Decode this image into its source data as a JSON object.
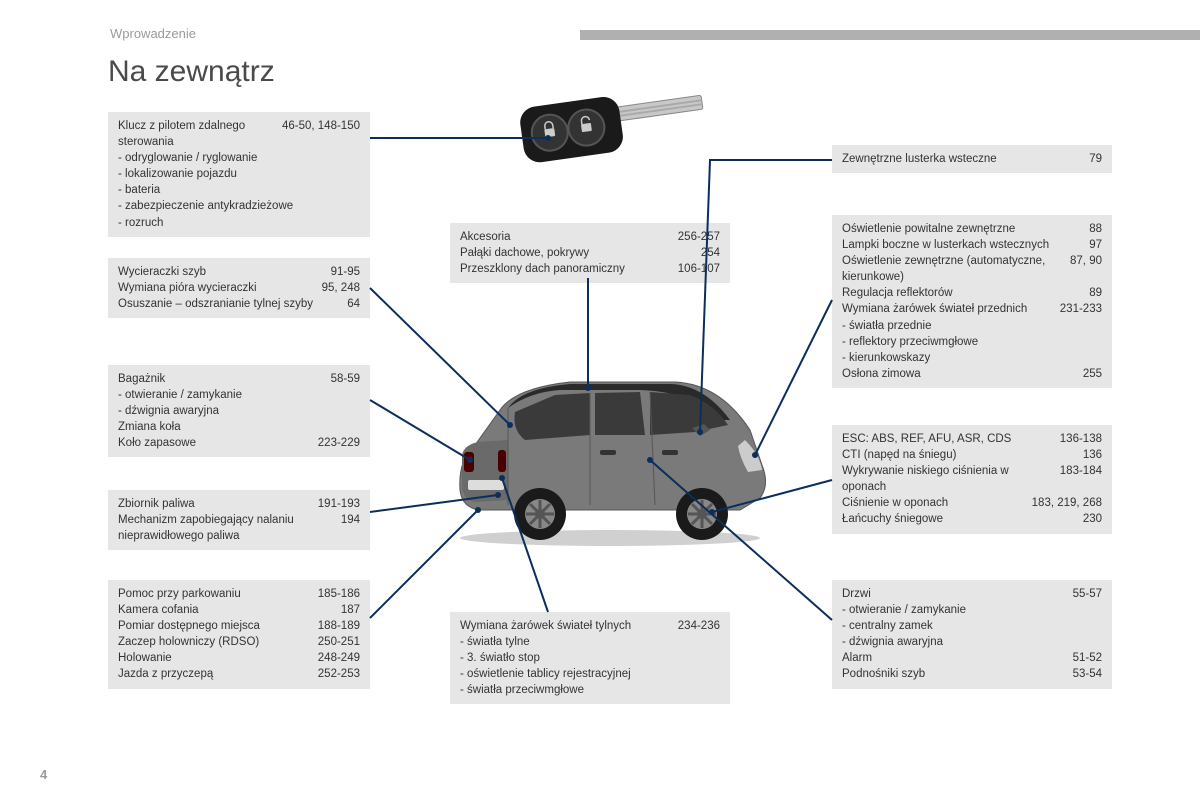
{
  "section": "Wprowadzenie",
  "title": "Na zewnątrz",
  "pageNumber": "4",
  "colors": {
    "boxBg": "#e6e6e6",
    "lineColor": "#0b2e5a",
    "barColor": "#b0b0b0"
  },
  "boxes": {
    "b1": {
      "items": [
        {
          "label": "Klucz z pilotem zdalnego sterowania",
          "pages": "46-50, 148-150"
        },
        {
          "label": "odryglowanie / ryglowanie",
          "sub": true
        },
        {
          "label": "lokalizowanie pojazdu",
          "sub": true
        },
        {
          "label": "bateria",
          "sub": true
        },
        {
          "label": "zabezpieczenie antykradzieżowe",
          "sub": true
        },
        {
          "label": "rozruch",
          "sub": true
        }
      ]
    },
    "b2": {
      "items": [
        {
          "label": "Wycieraczki szyb",
          "pages": "91-95"
        },
        {
          "label": "Wymiana pióra wycieraczki",
          "pages": "95, 248"
        },
        {
          "label": "Osuszanie – odszranianie tylnej szyby",
          "pages": "64"
        }
      ]
    },
    "b3": {
      "items": [
        {
          "label": "Bagażnik",
          "pages": "58-59"
        },
        {
          "label": "otwieranie / zamykanie",
          "sub": true
        },
        {
          "label": "dźwignia awaryjna",
          "sub": true
        },
        {
          "label": "Zmiana koła",
          "pages": ""
        },
        {
          "label": "Koło zapasowe",
          "pages": "223-229"
        }
      ]
    },
    "b4": {
      "items": [
        {
          "label": "Zbiornik paliwa",
          "pages": "191-193"
        },
        {
          "label": "Mechanizm zapobiegający nalaniu nieprawidłowego paliwa",
          "pages": "194"
        }
      ]
    },
    "b5": {
      "items": [
        {
          "label": "Pomoc przy parkowaniu",
          "pages": "185-186"
        },
        {
          "label": "Kamera cofania",
          "pages": "187"
        },
        {
          "label": "Pomiar dostępnego miejsca",
          "pages": "188-189"
        },
        {
          "label": "Zaczep holowniczy (RDSO)",
          "pages": "250-251"
        },
        {
          "label": "Holowanie",
          "pages": "248-249"
        },
        {
          "label": "Jazda z przyczepą",
          "pages": "252-253"
        }
      ]
    },
    "b6": {
      "items": [
        {
          "label": "Akcesoria",
          "pages": "256-257"
        },
        {
          "label": "Pałąki dachowe, pokrywy",
          "pages": "254"
        },
        {
          "label": "Przeszklony dach panoramiczny",
          "pages": "106-107"
        }
      ]
    },
    "b7": {
      "items": [
        {
          "label": "Wymiana żarówek świateł tylnych",
          "pages": "234-236"
        },
        {
          "label": "światła tylne",
          "sub": true
        },
        {
          "label": "3. światło stop",
          "sub": true
        },
        {
          "label": "oświetlenie tablicy rejestracyjnej",
          "sub": true
        },
        {
          "label": "światła przeciwmgłowe",
          "sub": true
        }
      ]
    },
    "b8": {
      "items": [
        {
          "label": "Zewnętrzne lusterka wsteczne",
          "pages": "79"
        }
      ]
    },
    "b9": {
      "items": [
        {
          "label": "Oświetlenie powitalne zewnętrzne",
          "pages": "88"
        },
        {
          "label": "Lampki boczne w lusterkach wstecznych",
          "pages": "97"
        },
        {
          "label": "Oświetlenie zewnętrzne (automatyczne, kierunkowe)",
          "pages": "87, 90"
        },
        {
          "label": "Regulacja reflektorów",
          "pages": "89"
        },
        {
          "label": "Wymiana żarówek świateł przednich",
          "pages": "231-233"
        },
        {
          "label": "światła przednie",
          "sub": true
        },
        {
          "label": "reflektory przeciwmgłowe",
          "sub": true
        },
        {
          "label": "kierunkowskazy",
          "sub": true
        },
        {
          "label": "Osłona zimowa",
          "pages": "255"
        }
      ]
    },
    "b10": {
      "items": [
        {
          "label": "ESC: ABS, REF, AFU, ASR, CDS",
          "pages": "136-138"
        },
        {
          "label": "CTI (napęd na śniegu)",
          "pages": "136"
        },
        {
          "label": "Wykrywanie niskiego ciśnienia w oponach",
          "pages": "183-184"
        },
        {
          "label": "Ciśnienie w oponach",
          "pages": "183, 219, 268"
        },
        {
          "label": "Łańcuchy śniegowe",
          "pages": "230"
        }
      ]
    },
    "b11": {
      "items": [
        {
          "label": "Drzwi",
          "pages": "55-57"
        },
        {
          "label": "otwieranie / zamykanie",
          "sub": true
        },
        {
          "label": "centralny zamek",
          "sub": true
        },
        {
          "label": "dźwignia awaryjna",
          "sub": true
        },
        {
          "label": "Alarm",
          "pages": "51-52"
        },
        {
          "label": "Podnośniki szyb",
          "pages": "53-54"
        }
      ]
    }
  }
}
